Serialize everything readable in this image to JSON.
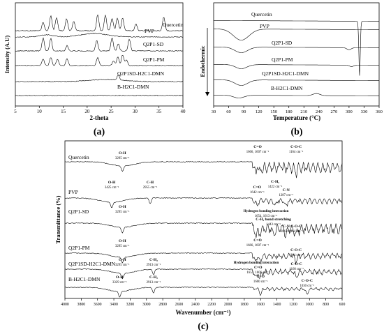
{
  "panels": {
    "a": {
      "label": "(a)",
      "xlabel": "2-theta",
      "ylabel": "Intensity (A.U)",
      "xticks": [
        "5",
        "10",
        "15",
        "20",
        "25",
        "30",
        "35",
        "40"
      ],
      "traces": [
        "Quercetin",
        "PVP",
        "Q2P1-SD",
        "Q2P1-PM",
        "Q2P1SD-H2C1-DMN",
        "B-H2C1-DMN"
      ]
    },
    "b": {
      "label": "(b)",
      "xlabel": "Temperature (°C)",
      "axis_note": "Endothermic",
      "xticks": [
        "30",
        "60",
        "90",
        "120",
        "150",
        "180",
        "210",
        "240",
        "270",
        "300",
        "330",
        "360"
      ],
      "traces": [
        "Quercetin",
        "PVP",
        "Q2P1-SD",
        "Q2P1-PM",
        "Q2P1SD-H2C1-DMN",
        "B-H2C1-DMN"
      ]
    },
    "c": {
      "label": "(c)",
      "xlabel": "Wavenumber (cm⁻¹)",
      "ylabel": "Transmittance (%)",
      "xticks": [
        "4000",
        "3800",
        "3600",
        "3400",
        "3200",
        "3000",
        "2800",
        "2600",
        "2400",
        "2200",
        "2000",
        "1800",
        "1600",
        "1400",
        "1200",
        "1000",
        "800",
        "600"
      ],
      "traces": [
        "Quercetin",
        "PVP",
        "Q2P1-SD",
        "Q2P1-PM",
        "Q2P1SD-H2C1-DMN",
        "B-H2C1-DMN"
      ],
      "annotations": [
        "O-H",
        "3295 cm⁻¹",
        "C=O",
        "1666, 1607 cm⁻¹",
        "C-O-C",
        "1164 cm⁻¹",
        "O-H",
        "3425 cm⁻¹",
        "C-H",
        "2955 cm⁻¹",
        "C=O",
        "1642 cm⁻¹",
        "C-H₂",
        "1422 cm⁻¹",
        "C-N",
        "1287 cm⁻¹",
        "O-H",
        "3295 cm⁻¹",
        "Hydrogen bonding interaction",
        "1654, 1613 cm⁻¹",
        "C-H₂ bond stretching",
        "1443 cm⁻¹",
        "C-N",
        "1286 cm⁻¹",
        "C-O-C",
        "1164 cm⁻¹",
        "O-H",
        "3295 cm⁻¹",
        "C=O",
        "1666, 1607 cm⁻¹",
        "C-O-C",
        "1164 cm⁻¹",
        "O-H",
        "3295 cm⁻¹",
        "C-H₂",
        "2913 cm⁻¹",
        "Hydrogen bonding interaction",
        "C=O",
        "1654, 1606 cm⁻¹",
        "C-O-C",
        "1160 cm⁻¹",
        "O-H",
        "3329 cm⁻¹",
        "C-H₂",
        "2913 cm⁻¹",
        "C=O",
        "1600 cm⁻¹",
        "C-O-C",
        "1030 cm⁻¹"
      ]
    }
  },
  "chart_data": [
    {
      "type": "line",
      "title": "",
      "xlabel": "2-theta",
      "ylabel": "Intensity (A.U)",
      "xlim": [
        5,
        40
      ],
      "series": [
        {
          "name": "Quercetin",
          "peaks": [
            10.8,
            12.4,
            13.6,
            15.7,
            17.2,
            22.2,
            23.8,
            25.2,
            26.3,
            27.4,
            30.2,
            36.0
          ]
        },
        {
          "name": "PVP",
          "peaks": [
            11.5,
            21.5
          ]
        },
        {
          "name": "Q2P1-SD",
          "peaks": [
            10.8,
            12.4,
            15.8,
            22.0,
            25.2,
            26.5,
            28.8
          ]
        },
        {
          "name": "Q2P1-PM",
          "peaks": [
            10.8,
            12.4,
            13.8,
            15.8,
            22.2,
            25.5,
            26.4,
            27.4,
            28.2
          ]
        },
        {
          "name": "Q2P1SD-H2C1-DMN",
          "peaks": [
            26.5
          ]
        },
        {
          "name": "B-H2C1-DMN",
          "peaks": []
        }
      ]
    },
    {
      "type": "line",
      "title": "",
      "xlabel": "Temperature (°C)",
      "xlim": [
        30,
        360
      ],
      "series": [
        {
          "name": "Quercetin",
          "peaks": [
            321
          ]
        },
        {
          "name": "PVP",
          "peaks": [
            85
          ]
        },
        {
          "name": "Q2P1-SD",
          "peaks": [
            85,
            300
          ]
        },
        {
          "name": "Q2P1-PM",
          "peaks": [
            85,
            305
          ]
        },
        {
          "name": "Q2P1SD-H2C1-DMN",
          "peaks": [
            85
          ]
        },
        {
          "name": "B-H2C1-DMN",
          "peaks": [
            80,
            235
          ]
        }
      ]
    },
    {
      "type": "line",
      "title": "",
      "xlabel": "Wavenumber (cm⁻¹)",
      "ylabel": "Transmittance (%)",
      "xlim": [
        4000,
        600
      ],
      "series": [
        {
          "name": "Quercetin",
          "bands": [
            3295,
            1666,
            1607,
            1164
          ]
        },
        {
          "name": "PVP",
          "bands": [
            3425,
            2955,
            1642,
            1422,
            1287
          ]
        },
        {
          "name": "Q2P1-SD",
          "bands": [
            3295,
            1654,
            1613,
            1443,
            1286,
            1164
          ]
        },
        {
          "name": "Q2P1-PM",
          "bands": [
            3295,
            1666,
            1607,
            1164
          ]
        },
        {
          "name": "Q2P1SD-H2C1-DMN",
          "bands": [
            3295,
            2913,
            1654,
            1606,
            1160
          ]
        },
        {
          "name": "B-H2C1-DMN",
          "bands": [
            3329,
            2913,
            1600,
            1030
          ]
        }
      ]
    }
  ]
}
